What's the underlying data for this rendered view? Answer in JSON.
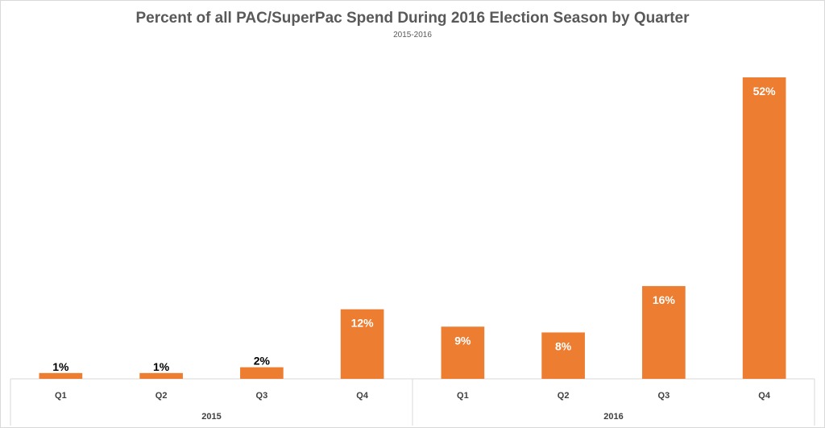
{
  "chart_data": {
    "type": "bar",
    "title": "Percent of all PAC/SuperPac Spend During 2016 Election Season by Quarter",
    "subtitle": "2015-2016",
    "groups": [
      {
        "label": "2015",
        "categories": [
          "Q1",
          "Q2",
          "Q3",
          "Q4"
        ],
        "values": [
          1,
          1,
          2,
          12
        ],
        "labels": [
          "1%",
          "1%",
          "2%",
          "12%"
        ]
      },
      {
        "label": "2016",
        "categories": [
          "Q1",
          "Q2",
          "Q3",
          "Q4"
        ],
        "values": [
          9,
          8,
          16,
          52
        ],
        "labels": [
          "9%",
          "8%",
          "16%",
          "52%"
        ]
      }
    ],
    "ylim": [
      0,
      57
    ],
    "bar_color": "#ED7D31",
    "grid": false,
    "legend": "none"
  }
}
